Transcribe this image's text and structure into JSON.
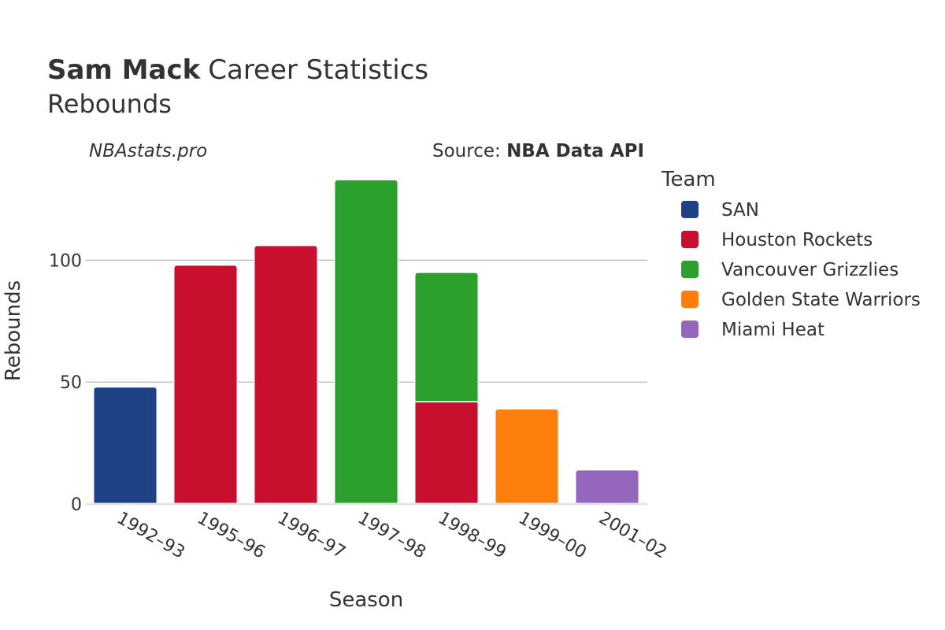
{
  "title": {
    "name": "Sam Mack",
    "rest": "Career Statistics"
  },
  "subtitle": "Rebounds",
  "watermark": "NBAstats.pro",
  "source": {
    "prefix": "Source: ",
    "name": "NBA Data API"
  },
  "legend_title": "Team",
  "chart_data": {
    "type": "bar",
    "stacked": true,
    "xlabel": "Season",
    "ylabel": "Rebounds",
    "ylim": [
      0,
      135
    ],
    "yticks": [
      0,
      50,
      100
    ],
    "grid": true,
    "legend_placement": "right",
    "categories": [
      "1992–93",
      "1995–96",
      "1996–97",
      "1997–98",
      "1998–99",
      "1999–00",
      "2001–02"
    ],
    "series": [
      {
        "name": "SAN",
        "color": "#1f4287",
        "values": [
          48,
          0,
          0,
          0,
          0,
          0,
          0
        ]
      },
      {
        "name": "Houston Rockets",
        "color": "#c8102e",
        "values": [
          0,
          98,
          106,
          0,
          42,
          0,
          0
        ]
      },
      {
        "name": "Vancouver Grizzlies",
        "color": "#2ca02c",
        "values": [
          0,
          0,
          0,
          133,
          53,
          0,
          0
        ]
      },
      {
        "name": "Golden State Warriors",
        "color": "#ff7f0e",
        "values": [
          0,
          0,
          0,
          0,
          0,
          39,
          0
        ]
      },
      {
        "name": "Miami Heat",
        "color": "#9467bd",
        "values": [
          0,
          0,
          0,
          0,
          0,
          0,
          14
        ]
      }
    ]
  }
}
